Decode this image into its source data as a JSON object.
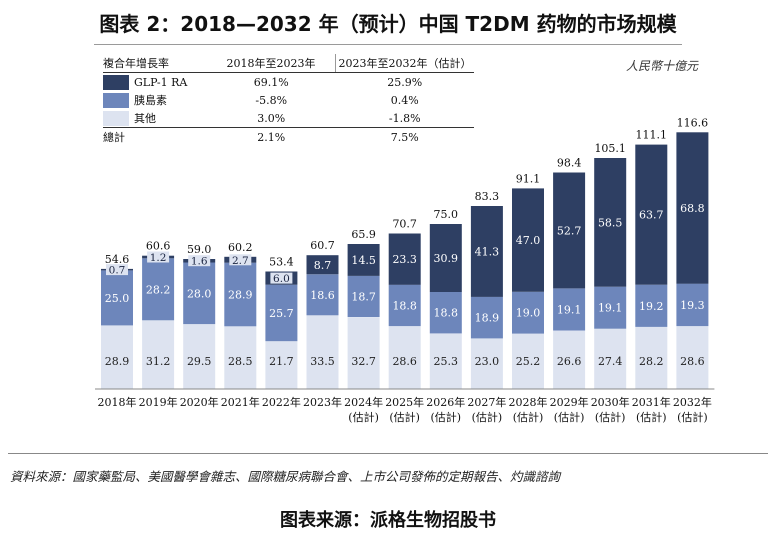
{
  "title": "图表 2：2018—2032 年（预计）中国 T2DM 药物的市场规模",
  "unit_label": "人民幣十億元",
  "table": {
    "headers": [
      "複合年增長率",
      "2018年至2023年",
      "2023年至2032年（估計）"
    ],
    "rows": [
      {
        "label": "GLP-1 RA",
        "color": "#2e3f63",
        "cagr_2018_2023": "69.1%",
        "cagr_2023_2032": "25.9%"
      },
      {
        "label": "胰島素",
        "color": "#6d86bb",
        "cagr_2018_2023": "-5.8%",
        "cagr_2023_2032": "0.4%"
      },
      {
        "label": "其他",
        "color": "#dde3f0",
        "cagr_2018_2023": "3.0%",
        "cagr_2023_2032": "-1.8%"
      }
    ],
    "total": {
      "label": "總計",
      "cagr_2018_2023": "2.1%",
      "cagr_2023_2032": "7.5%"
    }
  },
  "chart_data": {
    "type": "bar",
    "stacked": true,
    "categories": [
      "2018年",
      "2019年",
      "2020年",
      "2021年",
      "2022年",
      "2023年",
      "2024年\n(估計)",
      "2025年\n(估計)",
      "2026年\n(估計)",
      "2027年\n(估計)",
      "2028年\n(估計)",
      "2029年\n(估計)",
      "2030年\n(估計)",
      "2031年\n(估計)",
      "2032年\n(估計)"
    ],
    "series": [
      {
        "name": "其他",
        "color": "#dde3f0",
        "values": [
          28.9,
          31.2,
          29.5,
          28.5,
          21.7,
          33.5,
          32.7,
          28.6,
          25.3,
          23.0,
          25.2,
          26.6,
          27.4,
          28.2,
          28.6
        ]
      },
      {
        "name": "胰島素",
        "color": "#6d86bb",
        "values": [
          25.0,
          28.2,
          28.0,
          28.9,
          25.7,
          18.6,
          18.7,
          18.8,
          18.8,
          18.9,
          19.0,
          19.1,
          19.1,
          19.2,
          19.3
        ]
      },
      {
        "name": "GLP-1 RA",
        "color": "#2e3f63",
        "values": [
          0.7,
          1.2,
          1.6,
          2.7,
          6.0,
          8.7,
          14.5,
          23.3,
          30.9,
          41.3,
          47.0,
          52.7,
          58.5,
          63.7,
          68.8
        ]
      }
    ],
    "totals": [
      54.6,
      60.6,
      59.0,
      60.2,
      53.4,
      60.7,
      65.9,
      70.7,
      75.0,
      83.3,
      91.1,
      98.4,
      105.1,
      111.1,
      116.6
    ],
    "ylim": [
      0,
      116.6
    ]
  },
  "source_text": "資料來源：國家藥監局、美國醫學會雜志、國際糖尿病聯合會、上市公司發佈的定期報告、灼識諮詢",
  "footer": "图表来源：派格生物招股书"
}
